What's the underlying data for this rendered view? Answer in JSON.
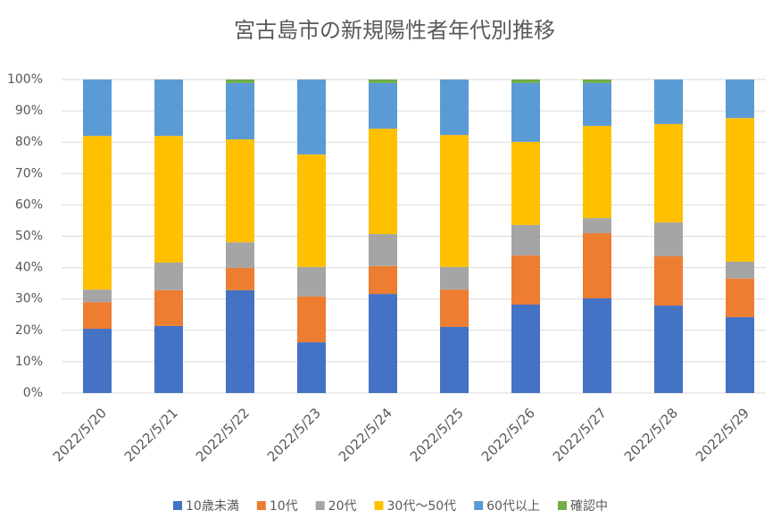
{
  "chart_data": {
    "type": "stacked_bar_100",
    "title": "宮古島市の新規陽性者年代別推移",
    "categories": [
      "2022/5/20",
      "2022/5/21",
      "2022/5/22",
      "2022/5/23",
      "2022/5/24",
      "2022/5/25",
      "2022/5/26",
      "2022/5/27",
      "2022/5/28",
      "2022/5/29"
    ],
    "series": [
      {
        "name": "10歳未満",
        "color": "#4472c4",
        "values": [
          20.5,
          21.4,
          32.8,
          16.2,
          31.6,
          21.1,
          28.2,
          30.2,
          27.9,
          24.2
        ]
      },
      {
        "name": "10代",
        "color": "#ed7d31",
        "values": [
          8.5,
          11.4,
          7.1,
          14.6,
          8.9,
          11.9,
          15.7,
          20.8,
          15.7,
          12.3
        ]
      },
      {
        "name": "20代",
        "color": "#a5a5a5",
        "values": [
          4.0,
          8.8,
          8.2,
          9.4,
          10.2,
          7.2,
          9.7,
          4.8,
          10.8,
          5.4
        ]
      },
      {
        "name": "30代～50代",
        "color": "#ffc000",
        "values": [
          49.0,
          40.4,
          32.8,
          35.9,
          33.6,
          42.1,
          26.5,
          29.4,
          31.4,
          45.8
        ]
      },
      {
        "name": "60代以上",
        "color": "#5b9bd5",
        "values": [
          18.0,
          18.0,
          18.0,
          23.9,
          14.6,
          17.7,
          18.8,
          13.7,
          14.2,
          12.3
        ]
      },
      {
        "name": "確認中",
        "color": "#70ad47",
        "values": [
          0,
          0,
          1.1,
          0,
          1.1,
          0,
          1.1,
          1.1,
          0,
          0
        ]
      }
    ],
    "ylim": [
      0,
      100
    ],
    "yticks": [
      {
        "value": 0,
        "label": "0%"
      },
      {
        "value": 10,
        "label": "10%"
      },
      {
        "value": 20,
        "label": "20%"
      },
      {
        "value": 30,
        "label": "30%"
      },
      {
        "value": 40,
        "label": "40%"
      },
      {
        "value": 50,
        "label": "50%"
      },
      {
        "value": 60,
        "label": "60%"
      },
      {
        "value": 70,
        "label": "70%"
      },
      {
        "value": 80,
        "label": "80%"
      },
      {
        "value": 90,
        "label": "90%"
      },
      {
        "value": 100,
        "label": "100%"
      }
    ],
    "grid": true,
    "legend": "bottom"
  }
}
